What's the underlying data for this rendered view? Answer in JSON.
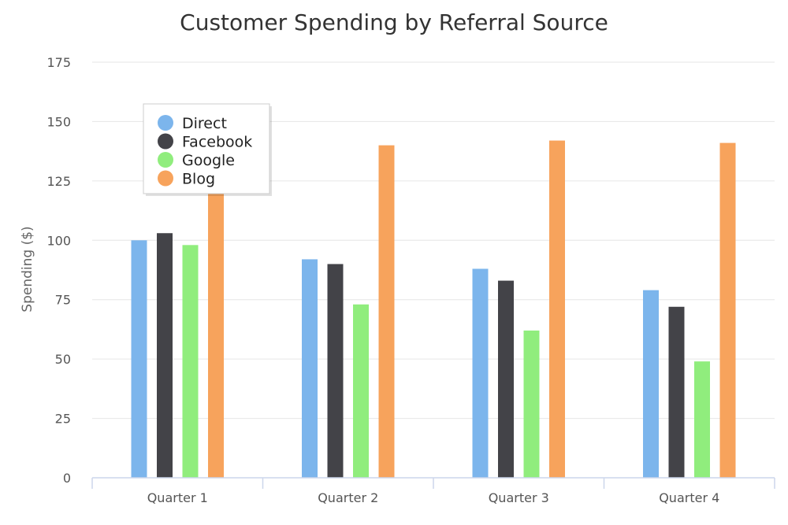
{
  "chart_data": {
    "type": "bar",
    "title": "Customer Spending by Referral Source",
    "xlabel": "",
    "ylabel": "Spending ($)",
    "ylim": [
      0,
      175
    ],
    "yticks": [
      0,
      25,
      50,
      75,
      100,
      125,
      150,
      175
    ],
    "grid": true,
    "legend_position": "top-left",
    "categories": [
      "Quarter 1",
      "Quarter 2",
      "Quarter 3",
      "Quarter 4"
    ],
    "series": [
      {
        "name": "Direct",
        "color": "#7cb5ec",
        "values": [
          100,
          92,
          88,
          79
        ]
      },
      {
        "name": "Facebook",
        "color": "#434348",
        "values": [
          103,
          90,
          83,
          72
        ]
      },
      {
        "name": "Google",
        "color": "#90ed7d",
        "values": [
          98,
          73,
          62,
          49
        ]
      },
      {
        "name": "Blog",
        "color": "#f7a35c",
        "values": [
          121,
          140,
          142,
          141
        ]
      }
    ]
  }
}
